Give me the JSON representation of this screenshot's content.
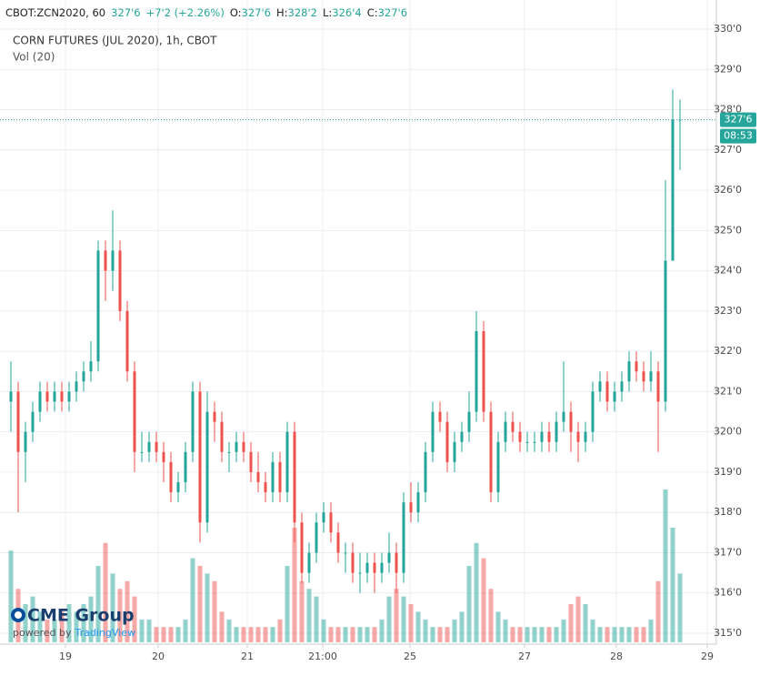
{
  "chart_data": {
    "type": "candlestick",
    "symbol": "CBOT:ZCN2020, 60",
    "last": "327'6",
    "change": "+7'2 (+2.26%)",
    "ohlc_labels": {
      "open": "O:",
      "high": "H:",
      "low": "L:",
      "close": "C:"
    },
    "ohlc_values": {
      "open": "327'6",
      "high": "328'2",
      "low": "326'4",
      "close": "327'6"
    },
    "title": "CORN FUTURES (JUL 2020), 1h, CBOT",
    "volume_label": "Vol (20)",
    "logo": "CME Group",
    "powered_by": "powered by",
    "powered_brand": "TradingView",
    "up_color": "#26a69a",
    "down_color": "#ef5350",
    "grid": true,
    "last_price": {
      "value": 327.75,
      "label": "327'6"
    },
    "countdown": "08:53",
    "xlim": [
      -0.5,
      97
    ],
    "xticks": [
      {
        "value": 7.5,
        "label": "19"
      },
      {
        "value": 20.25,
        "label": "20"
      },
      {
        "value": 32.5,
        "label": "21"
      },
      {
        "value": 42.875,
        "label": "21:00"
      },
      {
        "value": 54.875,
        "label": "25"
      },
      {
        "value": 70.625,
        "label": "27"
      },
      {
        "value": 83.25,
        "label": "28"
      },
      {
        "value": 95.75,
        "label": "29"
      }
    ],
    "ylim": [
      315,
      330
    ],
    "yticks": [
      {
        "value": 315,
        "label": "315'0"
      },
      {
        "value": 316,
        "label": "316'0"
      },
      {
        "value": 317,
        "label": "317'0"
      },
      {
        "value": 318,
        "label": "318'0"
      },
      {
        "value": 319,
        "label": "319'0"
      },
      {
        "value": 320,
        "label": "320'0"
      },
      {
        "value": 321,
        "label": "321'0"
      },
      {
        "value": 322,
        "label": "322'0"
      },
      {
        "value": 323,
        "label": "323'0"
      },
      {
        "value": 324,
        "label": "324'0"
      },
      {
        "value": 325,
        "label": "325'0"
      },
      {
        "value": 326,
        "label": "326'0"
      },
      {
        "value": 327,
        "label": "327'0"
      },
      {
        "value": 328,
        "label": "328'0"
      },
      {
        "value": 329,
        "label": "329'0"
      },
      {
        "value": 330,
        "label": "330'0"
      }
    ],
    "open": [
      320.75,
      321,
      319.5,
      320,
      320.5,
      321,
      320.75,
      321,
      320.75,
      321,
      321.25,
      321.5,
      321.75,
      324.5,
      324,
      324.5,
      323,
      321.5,
      319.5,
      319.5,
      319.75,
      319.5,
      319.25,
      318.5,
      318.75,
      319.5,
      321,
      317.75,
      320.5,
      320.25,
      319.5,
      319.5,
      319.75,
      319.5,
      319,
      318.75,
      318.5,
      319.25,
      318.5,
      320,
      317.75,
      316.5,
      317,
      317.75,
      318,
      317.5,
      317,
      317,
      316.5,
      316.5,
      316.75,
      316.5,
      316.75,
      317,
      316.5,
      318.25,
      318,
      318.5,
      319.5,
      320.5,
      320.25,
      319.25,
      319.75,
      320,
      320.5,
      322.5,
      320.5,
      318.5,
      319.75,
      320.25,
      320,
      319.75,
      319.75,
      319.75,
      320,
      319.75,
      320.25,
      320.5,
      320,
      319.75,
      320,
      321,
      321.25,
      320.75,
      321,
      321.25,
      321.75,
      321.5,
      321.25,
      321.5,
      320.75,
      324.25,
      327.75
    ],
    "high": [
      321.75,
      321.25,
      320.25,
      320.75,
      321.25,
      321.25,
      321.25,
      321.25,
      321.25,
      321.5,
      321.75,
      322.25,
      324.75,
      324.75,
      325.5,
      324.75,
      323.25,
      321.75,
      320,
      320,
      320,
      319.75,
      319.5,
      319,
      319.75,
      321.25,
      321.25,
      321,
      320.75,
      320.5,
      319.75,
      320,
      320,
      319.75,
      319.5,
      319,
      319.5,
      319.5,
      320.25,
      320.25,
      318,
      317.25,
      318,
      318.25,
      318.25,
      317.75,
      317.25,
      317.25,
      317,
      317,
      317,
      317,
      317.5,
      317.25,
      318.5,
      318.75,
      318.75,
      319.75,
      320.75,
      320.75,
      320.5,
      320,
      320.25,
      321,
      323,
      322.75,
      320.75,
      320,
      320.5,
      320.5,
      320.25,
      320,
      320,
      320.25,
      320.25,
      320.5,
      321.75,
      320.75,
      320.25,
      320.25,
      321.25,
      321.5,
      321.5,
      321.25,
      321.5,
      322,
      322,
      321.75,
      322,
      321.75,
      326.25,
      328.5,
      328.25
    ],
    "low": [
      320,
      318,
      318.75,
      319.75,
      320.25,
      320.5,
      320.5,
      320.5,
      320.5,
      320.75,
      321,
      321.25,
      321.5,
      323.25,
      323.5,
      322.75,
      321.25,
      319,
      319.25,
      319.25,
      319.25,
      318.75,
      318.25,
      318.25,
      318.5,
      319.25,
      317.25,
      317.5,
      319.75,
      319.25,
      319,
      319.25,
      319.25,
      318.75,
      318.5,
      318.25,
      318.25,
      318.25,
      318.25,
      317.25,
      316.25,
      316.25,
      316.75,
      317.5,
      317.25,
      316.75,
      316.5,
      316.25,
      316,
      316.25,
      316,
      316.25,
      316.5,
      316,
      316.25,
      317.75,
      317.75,
      318.25,
      319.25,
      320,
      319,
      319,
      319.5,
      319.75,
      320.25,
      320.25,
      318.25,
      318.25,
      319.5,
      319.75,
      319.5,
      319.5,
      319.5,
      319.5,
      319.5,
      319.5,
      320,
      319.5,
      319.25,
      319.5,
      319.75,
      320.75,
      320.5,
      320.5,
      320.75,
      321,
      321.25,
      321,
      321,
      319.5,
      320.5,
      324.25,
      326.5
    ],
    "close": [
      321,
      319.5,
      320,
      320.5,
      321,
      320.75,
      321,
      320.75,
      321,
      321.25,
      321.5,
      321.75,
      324.5,
      324,
      324.5,
      323,
      321.5,
      319.5,
      319.5,
      319.75,
      319.5,
      319.25,
      318.5,
      318.75,
      319.5,
      321,
      317.75,
      320.5,
      320.25,
      319.5,
      319.5,
      319.75,
      319.5,
      319,
      318.75,
      318.5,
      319.25,
      318.5,
      320,
      317.75,
      316.5,
      317,
      317.75,
      318,
      317.5,
      317,
      317,
      316.5,
      316.5,
      316.75,
      316.5,
      316.75,
      317,
      316.5,
      318.25,
      318,
      318.5,
      319.5,
      320.5,
      320.25,
      319.25,
      319.75,
      320,
      320.5,
      322.5,
      320.5,
      318.5,
      319.75,
      320.25,
      320,
      319.75,
      319.75,
      319.75,
      320,
      319.75,
      320.25,
      320.5,
      320,
      319.75,
      320,
      321,
      321.25,
      320.75,
      321,
      321.25,
      321.75,
      321.5,
      321.25,
      321.5,
      320.75,
      324.25,
      327.75,
      327.75
    ],
    "volume": [
      60,
      35,
      25,
      30,
      20,
      15,
      15,
      20,
      25,
      20,
      25,
      30,
      50,
      65,
      45,
      35,
      40,
      30,
      15,
      15,
      10,
      10,
      10,
      10,
      15,
      55,
      50,
      45,
      40,
      20,
      15,
      10,
      10,
      10,
      10,
      10,
      10,
      15,
      50,
      75,
      40,
      35,
      30,
      15,
      10,
      10,
      10,
      10,
      10,
      10,
      10,
      15,
      30,
      35,
      30,
      25,
      20,
      15,
      10,
      10,
      10,
      15,
      20,
      50,
      65,
      55,
      35,
      20,
      15,
      10,
      10,
      10,
      10,
      10,
      10,
      10,
      15,
      25,
      30,
      25,
      15,
      10,
      10,
      10,
      10,
      10,
      10,
      10,
      15,
      40,
      100,
      75,
      45
    ]
  }
}
